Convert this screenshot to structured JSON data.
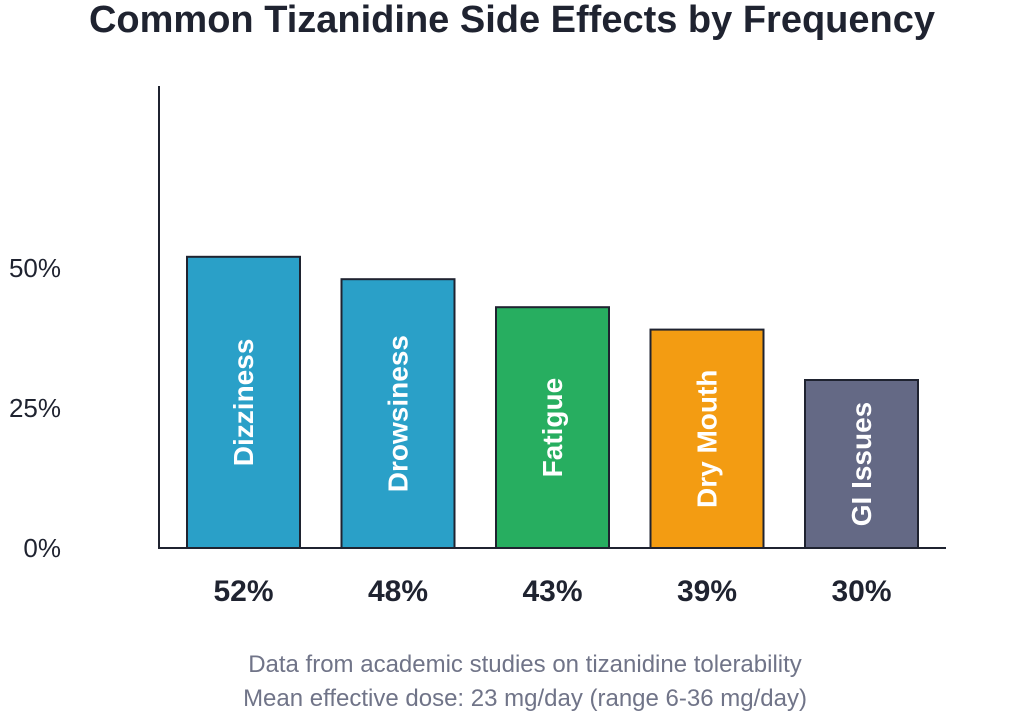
{
  "chart_data": {
    "type": "bar",
    "title": "Common Tizanidine Side Effects by Frequency",
    "categories": [
      "Dizziness",
      "Drowsiness",
      "Fatigue",
      "Dry Mouth",
      "GI Issues"
    ],
    "values": [
      52,
      48,
      43,
      39,
      30
    ],
    "value_labels": [
      "52%",
      "48%",
      "43%",
      "39%",
      "30%"
    ],
    "colors": [
      "#2aa0c8",
      "#2aa0c8",
      "#27ae60",
      "#f39c12",
      "#646985"
    ],
    "yticks": [
      {
        "value": 0,
        "label": "0%"
      },
      {
        "value": 25,
        "label": "25%"
      },
      {
        "value": 50,
        "label": "50%"
      }
    ],
    "xlabel": "",
    "ylabel": "",
    "grid": false,
    "notes": [
      "Data from academic studies on tizanidine tolerability",
      "Mean effective dose: 23 mg/day (range 6-36 mg/day)"
    ]
  }
}
